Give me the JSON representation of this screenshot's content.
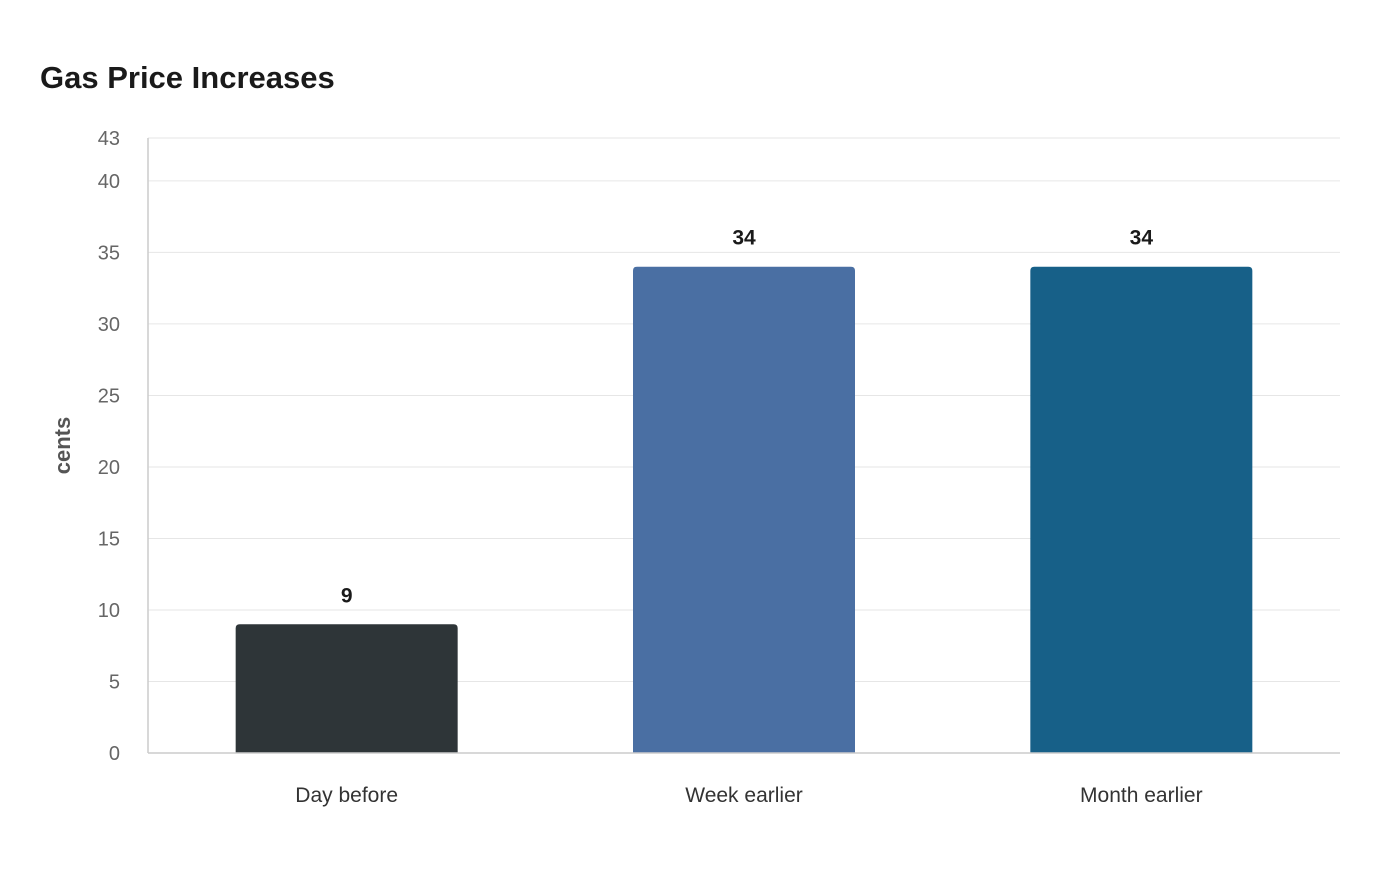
{
  "chart_data": {
    "type": "bar",
    "title": "Gas Price Increases",
    "xlabel": "",
    "ylabel": "cents",
    "categories": [
      "Day before",
      "Week earlier",
      "Month earlier"
    ],
    "values": [
      9,
      34,
      34
    ],
    "colors": [
      "#2e3538",
      "#4a6fa3",
      "#176088"
    ],
    "ylim": [
      0,
      43
    ],
    "yticks": [
      0,
      5,
      10,
      15,
      20,
      25,
      30,
      35,
      40,
      43
    ],
    "grid": true,
    "legend": "none"
  }
}
